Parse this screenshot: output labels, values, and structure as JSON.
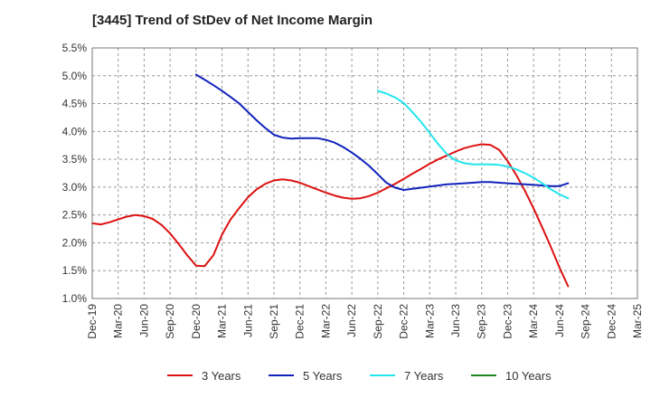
{
  "title": "[3445]  Trend of StDev of Net Income Margin",
  "chart_data": {
    "type": "line",
    "x_ticks": [
      "Dec-19",
      "Mar-20",
      "Jun-20",
      "Sep-20",
      "Dec-20",
      "Mar-21",
      "Jun-21",
      "Sep-21",
      "Dec-21",
      "Mar-22",
      "Jun-22",
      "Sep-22",
      "Dec-22",
      "Mar-23",
      "Jun-23",
      "Sep-23",
      "Dec-23",
      "Mar-24",
      "Jun-24",
      "Sep-24",
      "Dec-24",
      "Mar-25"
    ],
    "y_ticks": [
      "1.0%",
      "1.5%",
      "2.0%",
      "2.5%",
      "3.0%",
      "3.5%",
      "4.0%",
      "4.5%",
      "5.0%",
      "5.5%"
    ],
    "ylim": [
      1.0,
      5.5
    ],
    "grid": true,
    "legend_position": "bottom",
    "series": [
      {
        "name": "3 Years",
        "color": "#dd1111",
        "points": [
          [
            0,
            2.35
          ],
          [
            0.33,
            2.33
          ],
          [
            0.67,
            2.37
          ],
          [
            1,
            2.42
          ],
          [
            1.33,
            2.47
          ],
          [
            1.67,
            2.5
          ],
          [
            2,
            2.48
          ],
          [
            2.33,
            2.43
          ],
          [
            2.67,
            2.32
          ],
          [
            3,
            2.17
          ],
          [
            3.33,
            1.98
          ],
          [
            3.67,
            1.77
          ],
          [
            4,
            1.59
          ],
          [
            4.33,
            1.58
          ],
          [
            4.67,
            1.78
          ],
          [
            5,
            2.15
          ],
          [
            5.33,
            2.42
          ],
          [
            5.67,
            2.63
          ],
          [
            6,
            2.82
          ],
          [
            6.33,
            2.96
          ],
          [
            6.67,
            3.06
          ],
          [
            7,
            3.12
          ],
          [
            7.33,
            3.14
          ],
          [
            7.67,
            3.12
          ],
          [
            8,
            3.08
          ],
          [
            8.33,
            3.02
          ],
          [
            8.67,
            2.96
          ],
          [
            9,
            2.9
          ],
          [
            9.33,
            2.85
          ],
          [
            9.67,
            2.81
          ],
          [
            10,
            2.79
          ],
          [
            10.33,
            2.8
          ],
          [
            10.67,
            2.84
          ],
          [
            11,
            2.9
          ],
          [
            11.33,
            2.98
          ],
          [
            11.67,
            3.06
          ],
          [
            12,
            3.15
          ],
          [
            12.33,
            3.24
          ],
          [
            12.67,
            3.33
          ],
          [
            13,
            3.42
          ],
          [
            13.33,
            3.5
          ],
          [
            13.67,
            3.57
          ],
          [
            14,
            3.64
          ],
          [
            14.33,
            3.7
          ],
          [
            14.67,
            3.74
          ],
          [
            15,
            3.77
          ],
          [
            15.33,
            3.76
          ],
          [
            15.67,
            3.67
          ],
          [
            16,
            3.47
          ],
          [
            16.33,
            3.22
          ],
          [
            16.67,
            2.93
          ],
          [
            17,
            2.62
          ],
          [
            17.33,
            2.28
          ],
          [
            17.67,
            1.92
          ],
          [
            18,
            1.55
          ],
          [
            18.33,
            1.22
          ]
        ]
      },
      {
        "name": "5 Years",
        "color": "#1122bb",
        "points": [
          [
            4,
            5.02
          ],
          [
            4.33,
            4.93
          ],
          [
            4.67,
            4.83
          ],
          [
            5,
            4.73
          ],
          [
            5.33,
            4.62
          ],
          [
            5.67,
            4.5
          ],
          [
            6,
            4.35
          ],
          [
            6.33,
            4.2
          ],
          [
            6.67,
            4.06
          ],
          [
            7,
            3.94
          ],
          [
            7.33,
            3.89
          ],
          [
            7.67,
            3.87
          ],
          [
            8,
            3.88
          ],
          [
            8.33,
            3.88
          ],
          [
            8.67,
            3.88
          ],
          [
            9,
            3.85
          ],
          [
            9.33,
            3.8
          ],
          [
            9.67,
            3.72
          ],
          [
            10,
            3.62
          ],
          [
            10.33,
            3.51
          ],
          [
            10.67,
            3.38
          ],
          [
            11,
            3.23
          ],
          [
            11.33,
            3.08
          ],
          [
            11.67,
            2.99
          ],
          [
            12,
            2.95
          ],
          [
            12.33,
            2.97
          ],
          [
            12.67,
            2.99
          ],
          [
            13,
            3.01
          ],
          [
            13.33,
            3.03
          ],
          [
            13.67,
            3.05
          ],
          [
            14,
            3.06
          ],
          [
            14.33,
            3.07
          ],
          [
            14.67,
            3.08
          ],
          [
            15,
            3.09
          ],
          [
            15.33,
            3.09
          ],
          [
            15.67,
            3.08
          ],
          [
            16,
            3.07
          ],
          [
            16.33,
            3.06
          ],
          [
            16.67,
            3.05
          ],
          [
            17,
            3.04
          ],
          [
            17.33,
            3.03
          ],
          [
            17.67,
            3.02
          ],
          [
            18,
            3.02
          ],
          [
            18.33,
            3.07
          ]
        ]
      },
      {
        "name": "7 Years",
        "color": "#22e5ee",
        "points": [
          [
            11,
            4.73
          ],
          [
            11.33,
            4.68
          ],
          [
            11.67,
            4.61
          ],
          [
            12,
            4.51
          ],
          [
            12.33,
            4.35
          ],
          [
            12.67,
            4.17
          ],
          [
            13,
            3.97
          ],
          [
            13.33,
            3.77
          ],
          [
            13.67,
            3.59
          ],
          [
            14,
            3.48
          ],
          [
            14.33,
            3.43
          ],
          [
            14.67,
            3.41
          ],
          [
            15,
            3.41
          ],
          [
            15.33,
            3.41
          ],
          [
            15.67,
            3.4
          ],
          [
            16,
            3.37
          ],
          [
            16.33,
            3.32
          ],
          [
            16.67,
            3.25
          ],
          [
            17,
            3.17
          ],
          [
            17.33,
            3.07
          ],
          [
            17.67,
            2.96
          ],
          [
            18,
            2.87
          ],
          [
            18.33,
            2.8
          ]
        ]
      },
      {
        "name": "10 Years",
        "color": "#228822",
        "points": []
      }
    ]
  }
}
